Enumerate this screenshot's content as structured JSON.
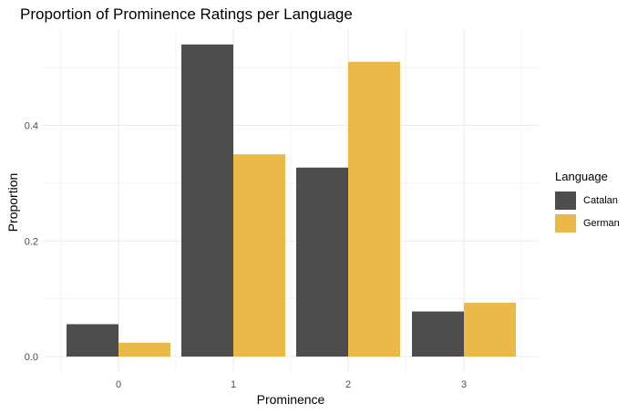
{
  "chart_data": {
    "type": "bar",
    "title": "Proportion of Prominence Ratings per Language",
    "xlabel": "Prominence",
    "ylabel": "Proportion",
    "categories": [
      "0",
      "1",
      "2",
      "3"
    ],
    "series": [
      {
        "name": "Catalan",
        "color": "#4d4d4d",
        "values": [
          0.056,
          0.54,
          0.327,
          0.078
        ]
      },
      {
        "name": "German",
        "color": "#ebb94a",
        "values": [
          0.024,
          0.35,
          0.51,
          0.093
        ]
      }
    ],
    "ylim": [
      0,
      0.54
    ],
    "yticks": [
      "0.0",
      "0.2",
      "0.4"
    ],
    "ytick_values": [
      0,
      0.2,
      0.4
    ],
    "legend_title": "Language",
    "legend_position": "right",
    "grid": true
  }
}
